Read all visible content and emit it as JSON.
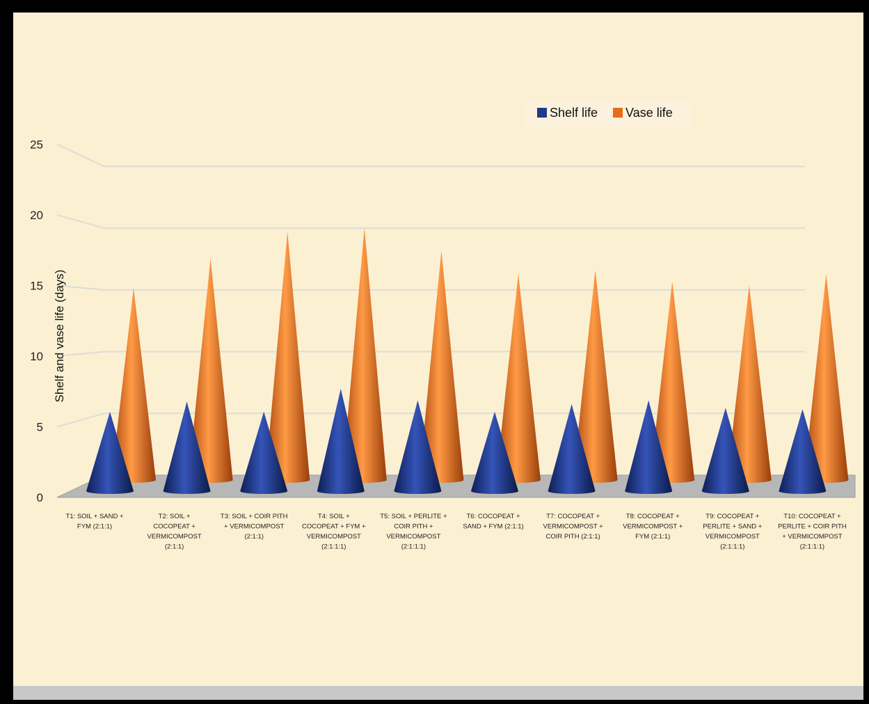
{
  "chart_data": {
    "type": "bar",
    "style": "3d-cone",
    "ylabel": "Shelf and vase life (days)",
    "ylim": [
      0,
      25
    ],
    "yticks": [
      "0",
      "5",
      "10",
      "15",
      "20",
      "25"
    ],
    "grid": true,
    "legend_position": "top-right",
    "categories": [
      [
        "T1: SOIL + SAND +",
        "FYM (2:1:1)"
      ],
      [
        "T2: SOIL +",
        "COCOPEAT +",
        "VERMICOMPOST",
        "(2:1:1)"
      ],
      [
        "T3: SOIL + COIR PITH",
        "+ VERMICOMPOST",
        "(2:1:1)"
      ],
      [
        "T4: SOIL +",
        "COCOPEAT + FYM +",
        "VERMICOMPOST",
        "(2:1:1:1)"
      ],
      [
        "T5: SOIL + PERLITE +",
        "COIR PITH +",
        "VERMICOMPOST",
        "(2:1:1:1)"
      ],
      [
        "T6: COCOPEAT +",
        "SAND + FYM (2:1:1)"
      ],
      [
        "T7: COCOPEAT +",
        "VERMICOMPOST +",
        "COIR PITH (2:1:1)"
      ],
      [
        "T8: COCOPEAT +",
        "VERMICOMPOST +",
        "FYM (2:1:1)"
      ],
      [
        "T9: COCOPEAT +",
        "PERLITE + SAND +",
        "VERMICOMPOST",
        "(2:1:1:1)"
      ],
      [
        "T10: COCOPEAT +",
        "PERLITE + COIR PITH",
        "+ VERMICOMPOST",
        "(2:1:1:1)"
      ]
    ],
    "series": [
      {
        "name": "Shelf life",
        "color": "#1f3a8a",
        "values": [
          6.2,
          7.0,
          6.2,
          8.0,
          7.1,
          6.2,
          6.8,
          7.1,
          6.5,
          6.4
        ]
      },
      {
        "name": "Vase life",
        "color": "#e46c1a",
        "values": [
          15.0,
          17.3,
          19.4,
          19.7,
          17.9,
          16.1,
          16.4,
          15.5,
          15.2,
          16.1
        ]
      }
    ]
  }
}
